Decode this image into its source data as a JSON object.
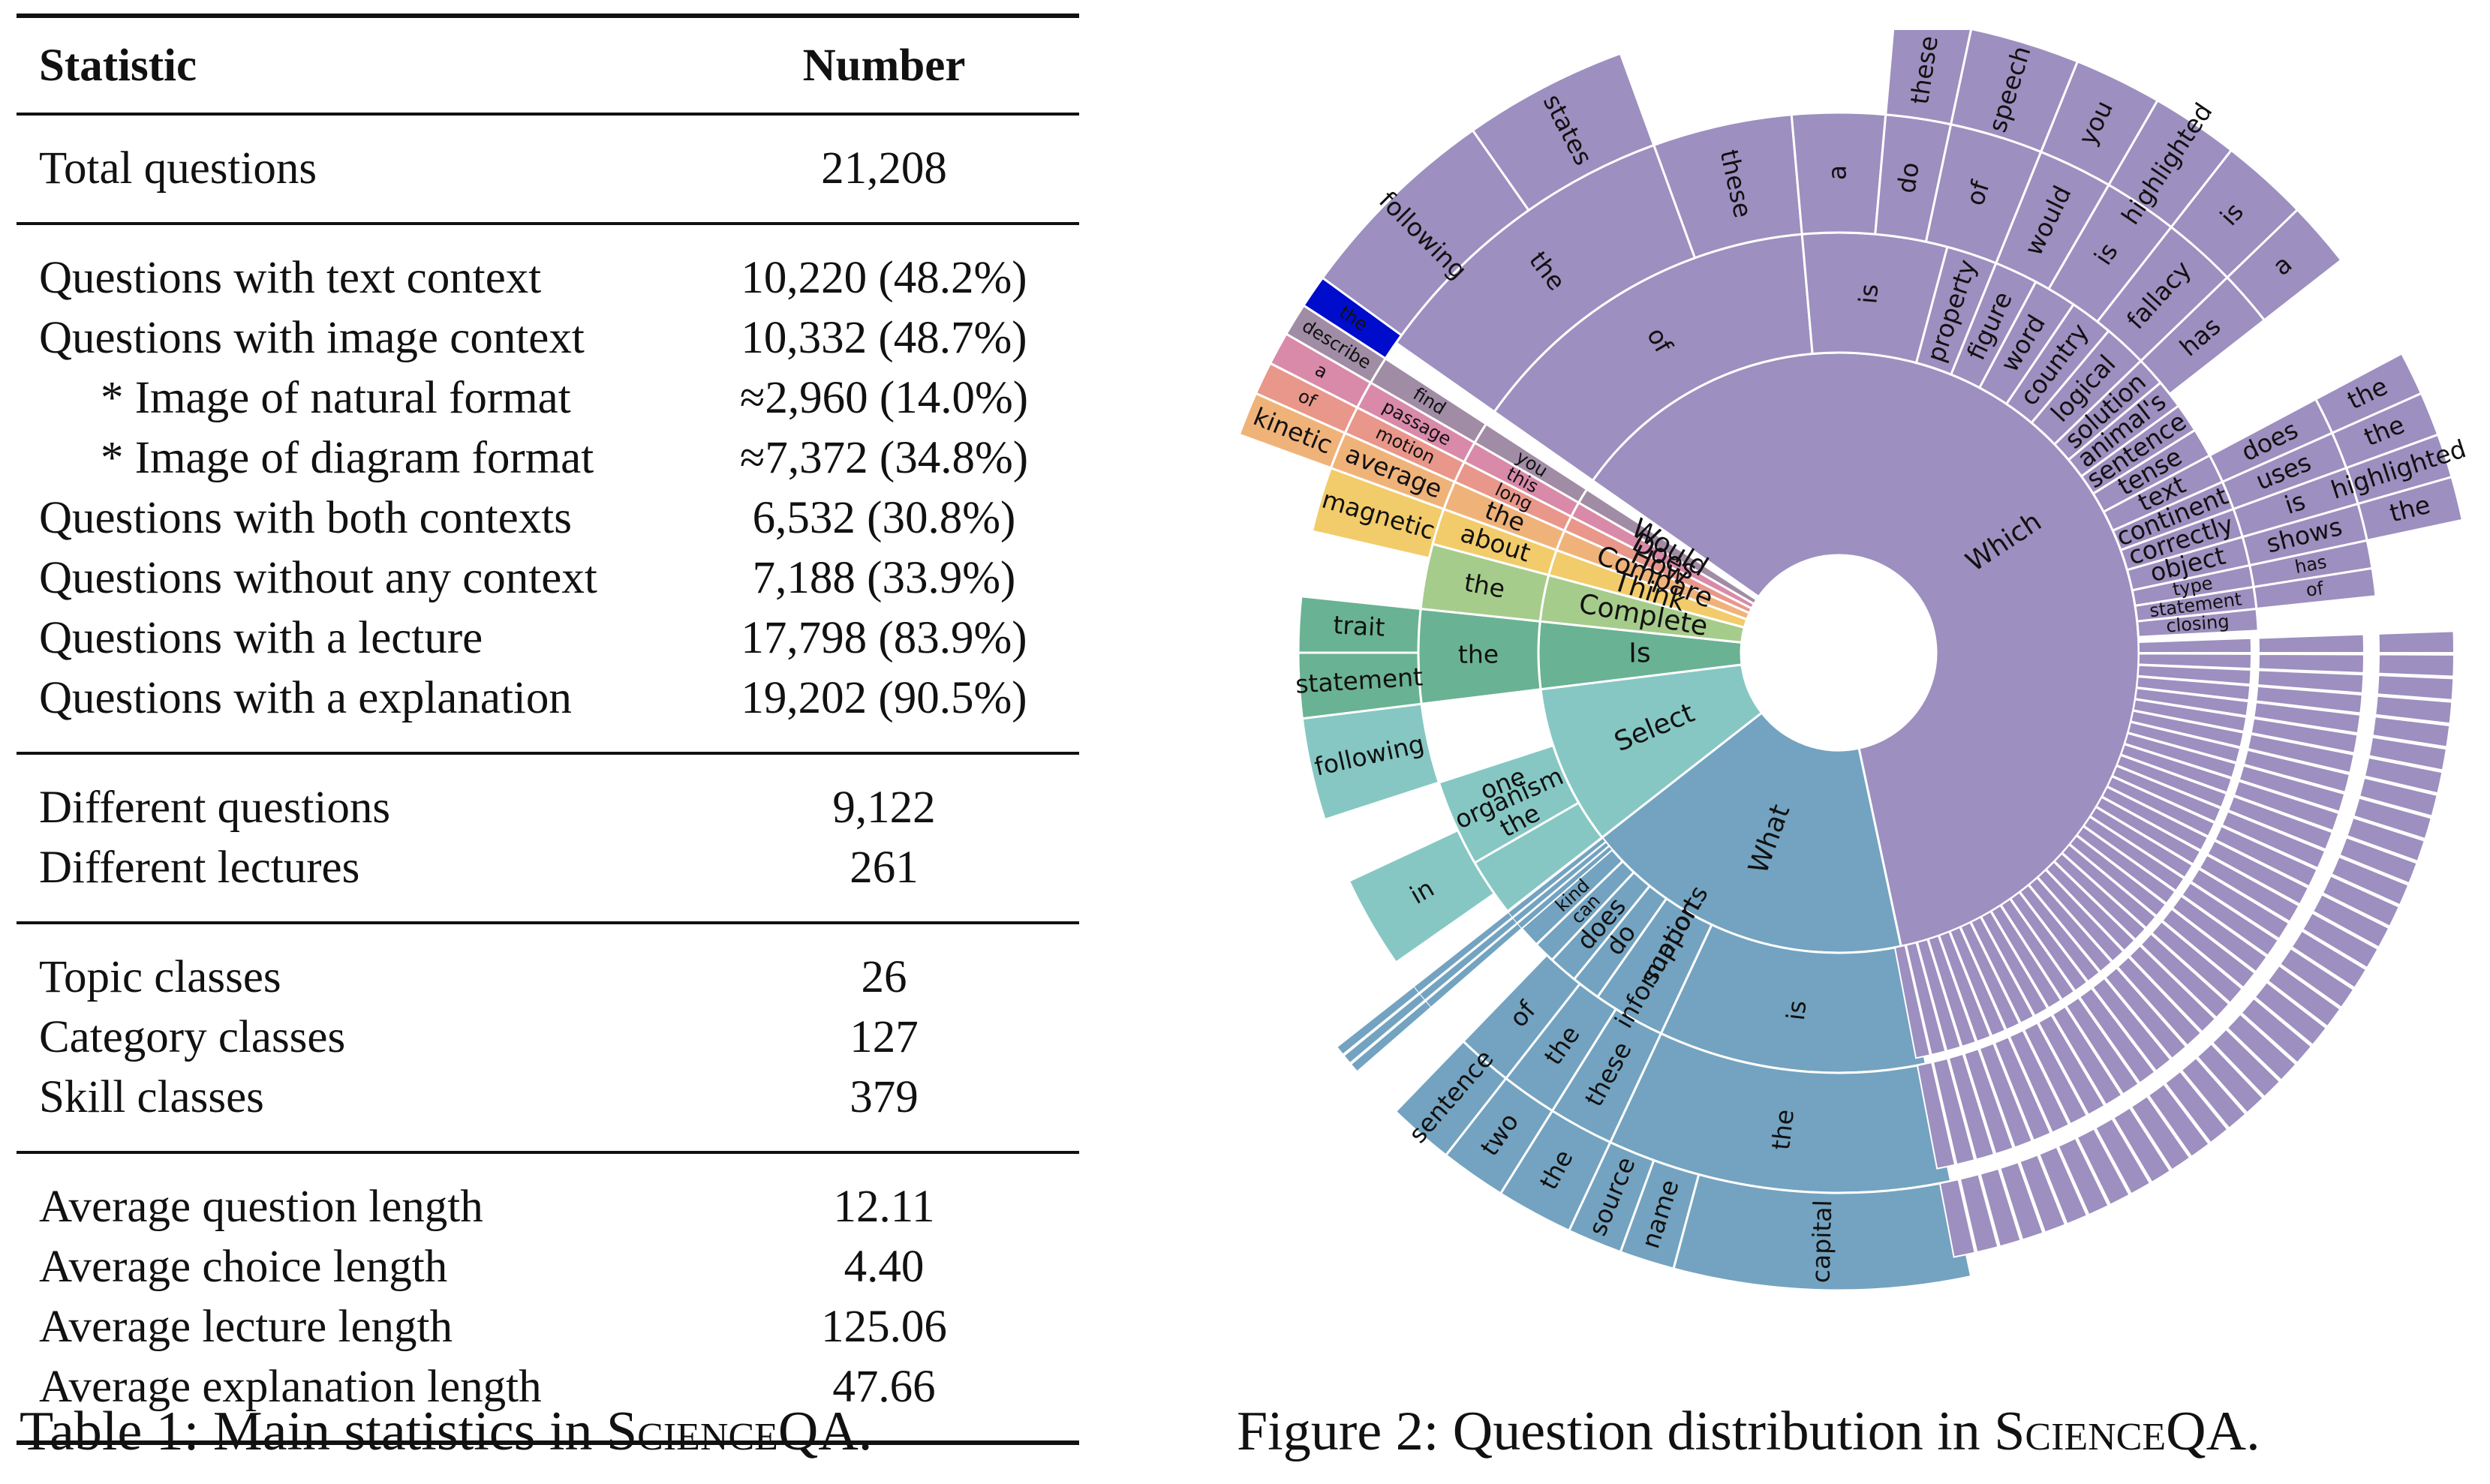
{
  "table": {
    "headers": {
      "statistic": "Statistic",
      "number": "Number"
    },
    "groups": [
      [
        {
          "label": "Total questions",
          "value": "21,208"
        }
      ],
      [
        {
          "label": "Questions with text context",
          "value": "10,220 (48.2%)"
        },
        {
          "label": "Questions with image context",
          "value": "10,332 (48.7%)"
        },
        {
          "label": "* Image of natural format",
          "value": "≈2,960 (14.0%)",
          "indent": true
        },
        {
          "label": "* Image of diagram format",
          "value": "≈7,372 (34.8%)",
          "indent": true
        },
        {
          "label": "Questions with both contexts",
          "value": "6,532 (30.8%)"
        },
        {
          "label": "Questions without any context",
          "value": "7,188 (33.9%)"
        },
        {
          "label": "Questions with a lecture",
          "value": "17,798 (83.9%)"
        },
        {
          "label": "Questions with a explanation",
          "value": "19,202 (90.5%)"
        }
      ],
      [
        {
          "label": "Different questions",
          "value": "9,122"
        },
        {
          "label": "Different lectures",
          "value": "261"
        }
      ],
      [
        {
          "label": "Topic classes",
          "value": "26"
        },
        {
          "label": "Category classes",
          "value": "127"
        },
        {
          "label": "Skill classes",
          "value": "379"
        }
      ],
      [
        {
          "label": "Average question length",
          "value": "12.11"
        },
        {
          "label": "Average choice length",
          "value": "4.40"
        },
        {
          "label": "Average lecture length",
          "value": "125.06"
        },
        {
          "label": "Average explanation length",
          "value": "47.66"
        }
      ]
    ]
  },
  "captions": {
    "table_prefix": "Table 1: Main statistics in ",
    "figure_prefix": "Figure 2: Question distribution in ",
    "dataset_name": "ScienceQA",
    "suffix": "."
  },
  "chart_data": {
    "type": "sunburst",
    "title": "Question distribution",
    "colors": {
      "Which": "#9d8fbf",
      "What": "#73a3c0",
      "Select": "#86c7c3",
      "Is": "#6ab294",
      "Complete": "#a6cc8b",
      "Think": "#f2cc6b",
      "Compare": "#efb37a",
      "How": "#e8978a",
      "Does": "#d98aa8",
      "Would": "#a18ca5"
    },
    "rings": [
      {
        "level": 1,
        "labels": [
          {
            "text": "Which",
            "a0": -55,
            "a1": 168
          },
          {
            "text": "What",
            "a0": 168,
            "a1": 232
          },
          {
            "text": "Select",
            "a0": 232,
            "a1": 263
          },
          {
            "text": "Is",
            "a0": 263,
            "a1": 276
          },
          {
            "text": "Complete",
            "a0": 276,
            "a1": 285
          },
          {
            "text": "Think",
            "a0": 285,
            "a1": 290
          },
          {
            "text": "Compare",
            "a0": 290,
            "a1": 294
          },
          {
            "text": "How",
            "a0": 294,
            "a1": 297
          },
          {
            "text": "Does",
            "a0": 297,
            "a1": 300
          },
          {
            "text": "Would",
            "a0": 300,
            "a1": 303
          }
        ]
      },
      {
        "level": 2,
        "labels": [
          {
            "text": "of",
            "a0": -55,
            "a1": -5
          },
          {
            "text": "is",
            "a0": -5,
            "a1": 15
          },
          {
            "text": "property",
            "a0": 15,
            "a1": 22
          },
          {
            "text": "figure",
            "a0": 22,
            "a1": 28
          },
          {
            "text": "word",
            "a0": 28,
            "a1": 34
          },
          {
            "text": "country",
            "a0": 34,
            "a1": 40
          },
          {
            "text": "logical",
            "a0": 40,
            "a1": 46
          },
          {
            "text": "solution",
            "a0": 46,
            "a1": 50
          },
          {
            "text": "animal's",
            "a0": 50,
            "a1": 54
          },
          {
            "text": "sentence",
            "a0": 54,
            "a1": 58
          },
          {
            "text": "tense",
            "a0": 58,
            "a1": 62
          },
          {
            "text": "text",
            "a0": 62,
            "a1": 66
          },
          {
            "text": "continent",
            "a0": 66,
            "a1": 70
          },
          {
            "text": "correctly",
            "a0": 70,
            "a1": 74
          },
          {
            "text": "object",
            "a0": 74,
            "a1": 78
          },
          {
            "text": "type",
            "a0": 78,
            "a1": 81
          },
          {
            "text": "statement",
            "a0": 81,
            "a1": 84
          },
          {
            "text": "closing",
            "a0": 84,
            "a1": 87
          },
          {
            "text": "is",
            "a0": 168,
            "a1": 205
          },
          {
            "text": "information",
            "a0": 205,
            "a1": 215
          },
          {
            "text": "supports",
            "a0": 205,
            "a1": 215
          },
          {
            "text": "do",
            "a0": 215,
            "a1": 219
          },
          {
            "text": "does",
            "a0": 219,
            "a1": 223
          },
          {
            "text": "can",
            "a0": 223,
            "a1": 226
          },
          {
            "text": "kind",
            "a0": 226,
            "a1": 229
          },
          {
            "text": "the",
            "a0": 232,
            "a1": 252
          },
          {
            "text": "one",
            "a0": 245,
            "a1": 252
          },
          {
            "text": "organism",
            "a0": 240,
            "a1": 252
          },
          {
            "text": "the",
            "a0": 263,
            "a1": 276
          },
          {
            "text": "the",
            "a0": 276,
            "a1": 285
          },
          {
            "text": "about",
            "a0": 285,
            "a1": 290
          },
          {
            "text": "the",
            "a0": 290,
            "a1": 294
          },
          {
            "text": "long",
            "a0": 294,
            "a1": 297
          },
          {
            "text": "this",
            "a0": 297,
            "a1": 300
          },
          {
            "text": "you",
            "a0": 300,
            "a1": 303
          }
        ]
      },
      {
        "level": 3,
        "labels": [
          {
            "text": "the",
            "a0": -55,
            "a1": -20
          },
          {
            "text": "these",
            "a0": -20,
            "a1": -5
          },
          {
            "text": "a",
            "a0": -5,
            "a1": 5
          },
          {
            "text": "do",
            "a0": 5,
            "a1": 12
          },
          {
            "text": "of",
            "a0": 12,
            "a1": 22
          },
          {
            "text": "would",
            "a0": 22,
            "a1": 30
          },
          {
            "text": "is",
            "a0": 30,
            "a1": 38
          },
          {
            "text": "fallacy",
            "a0": 38,
            "a1": 46
          },
          {
            "text": "has",
            "a0": 46,
            "a1": 52
          },
          {
            "text": "does",
            "a0": 62,
            "a1": 66
          },
          {
            "text": "uses",
            "a0": 66,
            "a1": 70
          },
          {
            "text": "is",
            "a0": 70,
            "a1": 74
          },
          {
            "text": "shows",
            "a0": 74,
            "a1": 78
          },
          {
            "text": "has",
            "a0": 78,
            "a1": 81
          },
          {
            "text": "of",
            "a0": 81,
            "a1": 84
          },
          {
            "text": "the",
            "a0": 168,
            "a1": 205
          },
          {
            "text": "these",
            "a0": 205,
            "a1": 212
          },
          {
            "text": "the",
            "a0": 212,
            "a1": 218
          },
          {
            "text": "of",
            "a0": 218,
            "a1": 224
          },
          {
            "text": "in",
            "a0": 235,
            "a1": 245
          },
          {
            "text": "following",
            "a0": 252,
            "a1": 263
          },
          {
            "text": "statement",
            "a0": 263,
            "a1": 270
          },
          {
            "text": "trait",
            "a0": 270,
            "a1": 276
          },
          {
            "text": "magnetic",
            "a0": 283,
            "a1": 290
          },
          {
            "text": "average",
            "a0": 290,
            "a1": 294
          },
          {
            "text": "motion",
            "a0": 294,
            "a1": 297
          },
          {
            "text": "passage",
            "a0": 297,
            "a1": 300
          },
          {
            "text": "find",
            "a0": 300,
            "a1": 303
          }
        ]
      },
      {
        "level": 4,
        "labels": [
          {
            "text": "following",
            "a0": -55,
            "a1": -35
          },
          {
            "text": "states",
            "a0": -35,
            "a1": -20
          },
          {
            "text": "these",
            "a0": 5,
            "a1": 12
          },
          {
            "text": "speech",
            "a0": 12,
            "a1": 22
          },
          {
            "text": "you",
            "a0": 22,
            "a1": 30
          },
          {
            "text": "highlighted",
            "a0": 30,
            "a1": 38
          },
          {
            "text": "is",
            "a0": 38,
            "a1": 46
          },
          {
            "text": "a",
            "a0": 46,
            "a1": 52
          },
          {
            "text": "the",
            "a0": 62,
            "a1": 66
          },
          {
            "text": "the",
            "a0": 66,
            "a1": 70
          },
          {
            "text": "highlighted",
            "a0": 70,
            "a1": 74
          },
          {
            "text": "the",
            "a0": 74,
            "a1": 78
          },
          {
            "text": "capital",
            "a0": 168,
            "a1": 195
          },
          {
            "text": "name",
            "a0": 195,
            "a1": 200
          },
          {
            "text": "source",
            "a0": 200,
            "a1": 205
          },
          {
            "text": "the",
            "a0": 205,
            "a1": 212
          },
          {
            "text": "two",
            "a0": 212,
            "a1": 218
          },
          {
            "text": "sentence",
            "a0": 218,
            "a1": 224
          },
          {
            "text": "kinetic",
            "a0": 290,
            "a1": 294
          },
          {
            "text": "of",
            "a0": 294,
            "a1": 297
          },
          {
            "text": "a",
            "a0": 297,
            "a1": 300
          },
          {
            "text": "describe",
            "a0": 300,
            "a1": 303
          },
          {
            "text": "the",
            "a0": 303,
            "a1": 306
          }
        ]
      }
    ]
  }
}
